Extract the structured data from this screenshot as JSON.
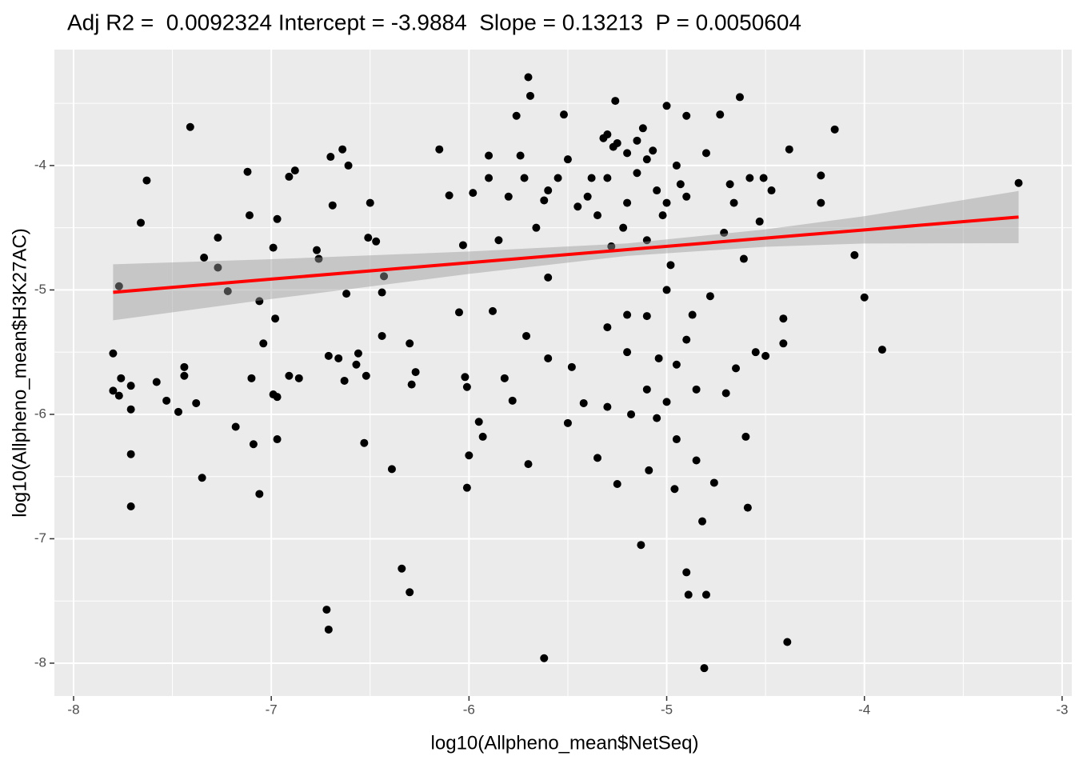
{
  "chart_data": {
    "type": "scatter",
    "title": "Adj R2 =  0.0092324 Intercept = -3.9884  Slope = 0.13213  P = 0.0050604",
    "xlabel": "log10(Allpheno_mean$NetSeq)",
    "ylabel": "log10(Allpheno_mean$H3K27AC)",
    "xlim": [
      -8.097,
      -2.951
    ],
    "ylim": [
      -8.264,
      -3.068
    ],
    "xticks": [
      -8,
      -7,
      -6,
      -5,
      -4,
      -3
    ],
    "yticks": [
      -8,
      -7,
      -6,
      -5,
      -4
    ],
    "grid": true,
    "point_color": "#000000",
    "x": [
      -7.8,
      -7.77,
      -7.8,
      -7.76,
      -7.77,
      -7.71,
      -7.71,
      -7.71,
      -7.71,
      -7.66,
      -7.63,
      -7.58,
      -7.53,
      -7.47,
      -7.44,
      -7.44,
      -7.41,
      -7.38,
      -7.35,
      -7.34,
      -7.27,
      -7.27,
      -7.22,
      -7.18,
      -7.12,
      -7.11,
      -7.1,
      -7.09,
      -7.06,
      -7.06,
      -7.04,
      -6.99,
      -6.99,
      -6.98,
      -6.97,
      -6.97,
      -6.97,
      -6.91,
      -6.91,
      -6.88,
      -6.86,
      -6.77,
      -6.76,
      -6.72,
      -6.71,
      -6.71,
      -6.7,
      -6.69,
      -6.66,
      -6.64,
      -6.63,
      -6.62,
      -6.61,
      -6.57,
      -6.56,
      -6.53,
      -6.52,
      -6.51,
      -6.5,
      -6.47,
      -6.44,
      -6.44,
      -6.43,
      -6.39,
      -6.34,
      -6.3,
      -6.3,
      -6.29,
      -6.27,
      -6.15,
      -6.1,
      -6.05,
      -6.03,
      -6.02,
      -6.01,
      -6.0,
      -6.01,
      -5.98,
      -5.95,
      -5.93,
      -5.9,
      -5.88,
      -5.85,
      -5.82,
      -5.78,
      -5.76,
      -5.74,
      -5.72,
      -5.7,
      -5.71,
      -5.7,
      -5.69,
      -5.66,
      -5.62,
      -5.6,
      -5.62,
      -5.6,
      -5.55,
      -5.52,
      -5.5,
      -5.48,
      -5.45,
      -5.42,
      -5.38,
      -5.35,
      -5.32,
      -5.3,
      -5.28,
      -5.27,
      -5.26,
      -5.25,
      -5.22,
      -5.2,
      -5.18,
      -5.15,
      -5.13,
      -5.12,
      -5.1,
      -5.09,
      -5.07,
      -5.05,
      -5.04,
      -5.02,
      -5.0,
      -4.98,
      -4.96,
      -4.95,
      -4.93,
      -4.9,
      -4.9,
      -4.89,
      -4.87,
      -4.85,
      -4.82,
      -4.81,
      -4.8,
      -4.8,
      -4.78,
      -4.76,
      -4.73,
      -4.71,
      -4.7,
      -4.68,
      -4.66,
      -4.65,
      -4.63,
      -4.61,
      -4.6,
      -4.59,
      -4.58,
      -4.55,
      -4.53,
      -4.51,
      -4.5,
      -4.47,
      -4.41,
      -4.41,
      -4.39,
      -4.38,
      -4.22,
      -4.22,
      -4.15,
      -4.05,
      -4.0,
      -3.91,
      -3.22,
      -5.3,
      -5.25,
      -5.2,
      -5.15,
      -5.1,
      -5.05,
      -5.3,
      -5.4,
      -5.6,
      -5.8,
      -5.9,
      -5.5,
      -5.0,
      -4.95,
      -4.9,
      -5.35,
      -5.2,
      -5.1,
      -5.0,
      -4.9,
      -5.2,
      -5.3,
      -4.85,
      -5.0,
      -5.1,
      -4.95
    ],
    "y": [
      -5.51,
      -4.97,
      -5.81,
      -5.71,
      -5.85,
      -5.77,
      -5.96,
      -6.32,
      -6.74,
      -4.46,
      -4.12,
      -5.74,
      -5.89,
      -5.98,
      -5.62,
      -5.69,
      -3.69,
      -5.91,
      -6.51,
      -4.74,
      -4.58,
      -4.82,
      -5.01,
      -6.1,
      -4.05,
      -4.4,
      -5.71,
      -6.24,
      -6.64,
      -5.09,
      -5.43,
      -4.66,
      -5.84,
      -5.23,
      -6.2,
      -5.86,
      -4.43,
      -4.09,
      -5.69,
      -4.04,
      -5.71,
      -4.68,
      -4.75,
      -7.57,
      -7.73,
      -5.53,
      -3.93,
      -4.32,
      -5.55,
      -3.87,
      -5.73,
      -5.03,
      -4.0,
      -5.6,
      -5.51,
      -6.23,
      -5.69,
      -4.58,
      -4.3,
      -4.61,
      -5.02,
      -5.37,
      -4.89,
      -6.44,
      -7.24,
      -7.43,
      -5.43,
      -5.76,
      -5.66,
      -3.87,
      -4.24,
      -5.18,
      -4.64,
      -5.7,
      -5.78,
      -6.33,
      -6.59,
      -4.22,
      -6.06,
      -6.18,
      -3.92,
      -5.17,
      -4.6,
      -5.71,
      -5.89,
      -3.6,
      -3.92,
      -4.1,
      -6.4,
      -5.37,
      -3.29,
      -3.44,
      -4.5,
      -4.28,
      -5.55,
      -7.96,
      -4.9,
      -4.1,
      -3.59,
      -6.07,
      -5.62,
      -4.33,
      -5.91,
      -4.1,
      -6.35,
      -3.78,
      -5.94,
      -4.65,
      -3.85,
      -3.48,
      -6.56,
      -4.5,
      -5.5,
      -6.0,
      -4.06,
      -7.05,
      -3.7,
      -5.21,
      -6.45,
      -3.88,
      -6.03,
      -5.55,
      -4.4,
      -3.52,
      -4.8,
      -6.6,
      -5.6,
      -4.15,
      -3.6,
      -7.27,
      -7.45,
      -5.2,
      -6.37,
      -6.86,
      -8.04,
      -7.45,
      -3.9,
      -5.05,
      -6.55,
      -3.59,
      -4.54,
      -5.83,
      -4.15,
      -4.3,
      -5.63,
      -3.45,
      -4.75,
      -6.18,
      -6.75,
      -4.1,
      -5.5,
      -4.45,
      -4.1,
      -5.53,
      -4.2,
      -5.23,
      -5.43,
      -7.83,
      -3.87,
      -4.08,
      -4.3,
      -3.71,
      -4.72,
      -5.06,
      -5.48,
      -4.14,
      -3.75,
      -3.82,
      -3.9,
      -3.8,
      -3.95,
      -4.2,
      -4.1,
      -4.25,
      -4.2,
      -4.25,
      -4.1,
      -3.95,
      -4.3,
      -4.0,
      -4.25,
      -4.4,
      -4.3,
      -4.6,
      -5.0,
      -5.4,
      -5.2,
      -5.3,
      -5.8,
      -5.9,
      -5.8,
      -6.2
    ],
    "fit": {
      "color": "#ff0000",
      "band_color": "#999999",
      "x": [
        -7.8,
        -7,
        -6,
        -5.2,
        -4.5,
        -4,
        -3.22
      ],
      "y": [
        -5.019,
        -4.913,
        -4.781,
        -4.676,
        -4.583,
        -4.517,
        -4.414
      ],
      "lower": [
        -5.244,
        -5.073,
        -4.871,
        -4.726,
        -4.653,
        -4.627,
        -4.624
      ],
      "upper": [
        -4.794,
        -4.753,
        -4.691,
        -4.626,
        -4.513,
        -4.407,
        -4.204
      ]
    }
  }
}
